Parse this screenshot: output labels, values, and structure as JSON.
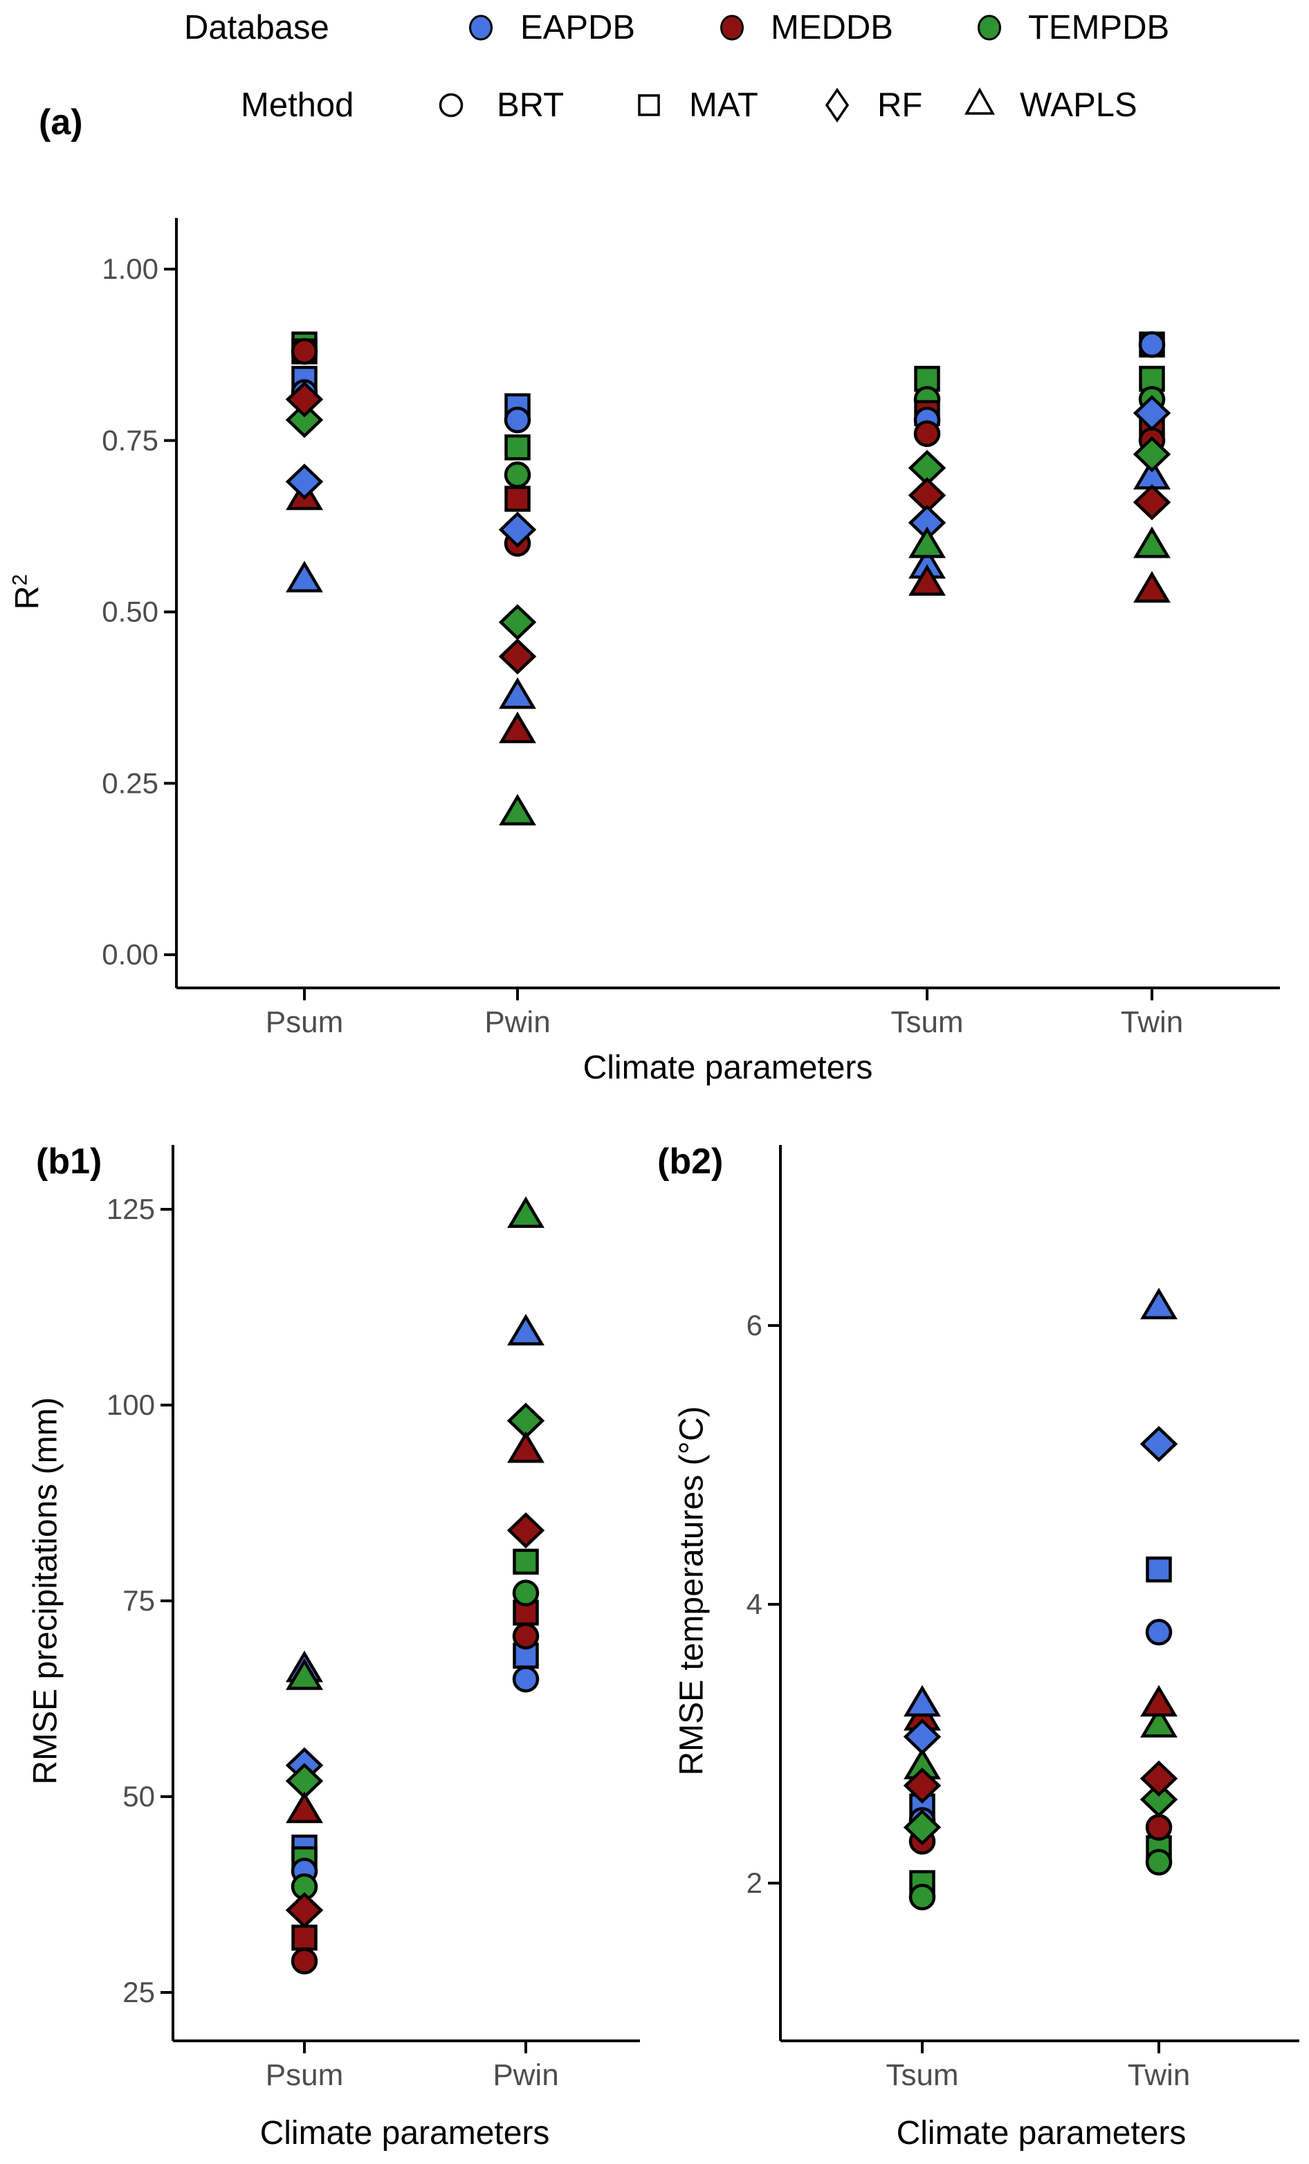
{
  "legend": {
    "database": {
      "label": "Database",
      "items": [
        {
          "name": "EAPDB",
          "color": "#4673e0"
        },
        {
          "name": "MEDDB",
          "color": "#8e1111"
        },
        {
          "name": "TEMPDB",
          "color": "#2e9330"
        }
      ]
    },
    "method": {
      "label": "Method",
      "items": [
        {
          "name": "BRT",
          "shape": "circle"
        },
        {
          "name": "MAT",
          "shape": "square"
        },
        {
          "name": "RF",
          "shape": "diamond"
        },
        {
          "name": "WAPLS",
          "shape": "triangle"
        }
      ]
    }
  },
  "panels": {
    "a": {
      "tag": "(a)",
      "xlabel": "Climate parameters",
      "ylabel_base": "R",
      "ylabel_sup": "2"
    },
    "b1": {
      "tag": "(b1)",
      "xlabel": "Climate parameters",
      "ylabel": "RMSE precipitations (mm)"
    },
    "b2": {
      "tag": "(b2)",
      "xlabel": "Climate parameters",
      "ylabel": "RMSE temperatures (°C)"
    }
  },
  "chart_data": [
    {
      "id": "a",
      "type": "scatter",
      "title": "(a) Cross-validated model performance",
      "xlabel": "Climate parameters",
      "ylabel": "R2",
      "categories": [
        "Psum",
        "Pwin",
        "Tsum",
        "Twin"
      ],
      "yticks": [
        {
          "value": 1.0,
          "label": "1.00"
        },
        {
          "value": 0.75,
          "label": "0.75"
        },
        {
          "value": 0.5,
          "label": "0.50"
        },
        {
          "value": 0.25,
          "label": "0.25"
        },
        {
          "value": 0.0,
          "label": "0.00"
        }
      ],
      "ylim": [
        0,
        1.05
      ],
      "grid": false,
      "legend_position": "top",
      "points": [
        {
          "x": "Psum",
          "database": "TEMPDB",
          "method": "MAT",
          "value": 0.89
        },
        {
          "x": "Psum",
          "database": "MEDDB",
          "method": "MAT",
          "value": 0.88
        },
        {
          "x": "Psum",
          "database": "EAPDB",
          "method": "MAT",
          "value": 0.84
        },
        {
          "x": "Psum",
          "database": "EAPDB",
          "method": "BRT",
          "value": 0.82
        },
        {
          "x": "Psum",
          "database": "TEMPDB",
          "method": "RF",
          "value": 0.78
        },
        {
          "x": "Psum",
          "database": "MEDDB",
          "method": "WAPLS",
          "value": 0.67
        },
        {
          "x": "Psum",
          "database": "MEDDB",
          "method": "RF",
          "value": 0.81
        },
        {
          "x": "Psum",
          "database": "MEDDB",
          "method": "BRT",
          "value": 0.88
        },
        {
          "x": "Psum",
          "database": "EAPDB",
          "method": "RF",
          "value": 0.69
        },
        {
          "x": "Psum",
          "database": "EAPDB",
          "method": "WAPLS",
          "value": 0.55
        },
        {
          "x": "Pwin",
          "database": "EAPDB",
          "method": "MAT",
          "value": 0.8
        },
        {
          "x": "Pwin",
          "database": "EAPDB",
          "method": "BRT",
          "value": 0.78
        },
        {
          "x": "Pwin",
          "database": "TEMPDB",
          "method": "MAT",
          "value": 0.74
        },
        {
          "x": "Pwin",
          "database": "MEDDB",
          "method": "MAT",
          "value": 0.665
        },
        {
          "x": "Pwin",
          "database": "TEMPDB",
          "method": "BRT",
          "value": 0.7
        },
        {
          "x": "Pwin",
          "database": "MEDDB",
          "method": "BRT",
          "value": 0.6
        },
        {
          "x": "Pwin",
          "database": "EAPDB",
          "method": "RF",
          "value": 0.62
        },
        {
          "x": "Pwin",
          "database": "MEDDB",
          "method": "RF",
          "value": 0.435
        },
        {
          "x": "Pwin",
          "database": "TEMPDB",
          "method": "RF",
          "value": 0.485
        },
        {
          "x": "Pwin",
          "database": "EAPDB",
          "method": "WAPLS",
          "value": 0.38
        },
        {
          "x": "Pwin",
          "database": "MEDDB",
          "method": "WAPLS",
          "value": 0.33
        },
        {
          "x": "Pwin",
          "database": "TEMPDB",
          "method": "WAPLS",
          "value": 0.21
        },
        {
          "x": "Tsum",
          "database": "TEMPDB",
          "method": "MAT",
          "value": 0.84
        },
        {
          "x": "Tsum",
          "database": "TEMPDB",
          "method": "BRT",
          "value": 0.81
        },
        {
          "x": "Tsum",
          "database": "MEDDB",
          "method": "MAT",
          "value": 0.79
        },
        {
          "x": "Tsum",
          "database": "EAPDB",
          "method": "BRT",
          "value": 0.78
        },
        {
          "x": "Tsum",
          "database": "MEDDB",
          "method": "BRT",
          "value": 0.76
        },
        {
          "x": "Tsum",
          "database": "TEMPDB",
          "method": "RF",
          "value": 0.71
        },
        {
          "x": "Tsum",
          "database": "MEDDB",
          "method": "RF",
          "value": 0.67
        },
        {
          "x": "Tsum",
          "database": "EAPDB",
          "method": "RF",
          "value": 0.63
        },
        {
          "x": "Tsum",
          "database": "EAPDB",
          "method": "WAPLS",
          "value": 0.57
        },
        {
          "x": "Tsum",
          "database": "TEMPDB",
          "method": "WAPLS",
          "value": 0.6
        },
        {
          "x": "Tsum",
          "database": "MEDDB",
          "method": "WAPLS",
          "value": 0.545
        },
        {
          "x": "Twin",
          "database": "EAPDB",
          "method": "MAT",
          "value": 0.89
        },
        {
          "x": "Twin",
          "database": "EAPDB",
          "method": "BRT",
          "value": 0.89
        },
        {
          "x": "Twin",
          "database": "TEMPDB",
          "method": "MAT",
          "value": 0.84
        },
        {
          "x": "Twin",
          "database": "TEMPDB",
          "method": "BRT",
          "value": 0.81
        },
        {
          "x": "Twin",
          "database": "MEDDB",
          "method": "MAT",
          "value": 0.765
        },
        {
          "x": "Twin",
          "database": "MEDDB",
          "method": "BRT",
          "value": 0.75
        },
        {
          "x": "Twin",
          "database": "EAPDB",
          "method": "RF",
          "value": 0.79
        },
        {
          "x": "Twin",
          "database": "EAPDB",
          "method": "WAPLS",
          "value": 0.7
        },
        {
          "x": "Twin",
          "database": "TEMPDB",
          "method": "RF",
          "value": 0.73
        },
        {
          "x": "Twin",
          "database": "MEDDB",
          "method": "RF",
          "value": 0.66
        },
        {
          "x": "Twin",
          "database": "TEMPDB",
          "method": "WAPLS",
          "value": 0.6
        },
        {
          "x": "Twin",
          "database": "MEDDB",
          "method": "WAPLS",
          "value": 0.535
        }
      ]
    },
    {
      "id": "b1",
      "type": "scatter",
      "title": "(b1) RMSE of precipitation reconstructions",
      "xlabel": "Climate parameters",
      "ylabel": "RMSE precipitations (mm)",
      "categories": [
        "Psum",
        "Pwin"
      ],
      "yticks": [
        {
          "value": 125,
          "label": "125"
        },
        {
          "value": 100,
          "label": "100"
        },
        {
          "value": 75,
          "label": "75"
        },
        {
          "value": 50,
          "label": "50"
        },
        {
          "value": 25,
          "label": "25"
        }
      ],
      "ylim": [
        20,
        131
      ],
      "grid": false,
      "points": [
        {
          "x": "Psum",
          "database": "EAPDB",
          "method": "WAPLS",
          "value": 66.5
        },
        {
          "x": "Psum",
          "database": "TEMPDB",
          "method": "WAPLS",
          "value": 65.5
        },
        {
          "x": "Psum",
          "database": "EAPDB",
          "method": "RF",
          "value": 54
        },
        {
          "x": "Psum",
          "database": "TEMPDB",
          "method": "RF",
          "value": 52
        },
        {
          "x": "Psum",
          "database": "MEDDB",
          "method": "WAPLS",
          "value": 48.5
        },
        {
          "x": "Psum",
          "database": "EAPDB",
          "method": "MAT",
          "value": 43.5
        },
        {
          "x": "Psum",
          "database": "TEMPDB",
          "method": "MAT",
          "value": 42
        },
        {
          "x": "Psum",
          "database": "EAPDB",
          "method": "BRT",
          "value": 40.5
        },
        {
          "x": "Psum",
          "database": "TEMPDB",
          "method": "BRT",
          "value": 38.5
        },
        {
          "x": "Psum",
          "database": "MEDDB",
          "method": "RF",
          "value": 35.5
        },
        {
          "x": "Psum",
          "database": "MEDDB",
          "method": "MAT",
          "value": 32
        },
        {
          "x": "Psum",
          "database": "MEDDB",
          "method": "BRT",
          "value": 29
        },
        {
          "x": "Pwin",
          "database": "TEMPDB",
          "method": "WAPLS",
          "value": 124.5
        },
        {
          "x": "Pwin",
          "database": "EAPDB",
          "method": "WAPLS",
          "value": 109.5
        },
        {
          "x": "Pwin",
          "database": "TEMPDB",
          "method": "RF",
          "value": 98
        },
        {
          "x": "Pwin",
          "database": "MEDDB",
          "method": "WAPLS",
          "value": 94.5
        },
        {
          "x": "Pwin",
          "database": "MEDDB",
          "method": "RF",
          "value": 84
        },
        {
          "x": "Pwin",
          "database": "TEMPDB",
          "method": "MAT",
          "value": 80
        },
        {
          "x": "Pwin",
          "database": "MEDDB",
          "method": "MAT",
          "value": 73.5
        },
        {
          "x": "Pwin",
          "database": "TEMPDB",
          "method": "BRT",
          "value": 76
        },
        {
          "x": "Pwin",
          "database": "EAPDB",
          "method": "MAT",
          "value": 68
        },
        {
          "x": "Pwin",
          "database": "MEDDB",
          "method": "BRT",
          "value": 70.5
        },
        {
          "x": "Pwin",
          "database": "EAPDB",
          "method": "BRT",
          "value": 65
        }
      ]
    },
    {
      "id": "b2",
      "type": "scatter",
      "title": "(b2) RMSE of temperature reconstructions",
      "xlabel": "Climate parameters",
      "ylabel": "RMSE temperatures (°C)",
      "categories": [
        "Tsum",
        "Twin"
      ],
      "yticks": [
        {
          "value": 6,
          "label": "6"
        },
        {
          "value": 4,
          "label": "4"
        },
        {
          "value": 2,
          "label": "2"
        }
      ],
      "ylim": [
        1.3,
        6.8
      ],
      "grid": false,
      "points": [
        {
          "x": "Tsum",
          "database": "MEDDB",
          "method": "WAPLS",
          "value": 3.2
        },
        {
          "x": "Tsum",
          "database": "EAPDB",
          "method": "WAPLS",
          "value": 3.3
        },
        {
          "x": "Tsum",
          "database": "TEMPDB",
          "method": "WAPLS",
          "value": 2.85
        },
        {
          "x": "Tsum",
          "database": "EAPDB",
          "method": "RF",
          "value": 3.05
        },
        {
          "x": "Tsum",
          "database": "EAPDB",
          "method": "MAT",
          "value": 2.55
        },
        {
          "x": "Tsum",
          "database": "MEDDB",
          "method": "RF",
          "value": 2.7
        },
        {
          "x": "Tsum",
          "database": "EAPDB",
          "method": "BRT",
          "value": 2.45
        },
        {
          "x": "Tsum",
          "database": "MEDDB",
          "method": "BRT",
          "value": 2.3
        },
        {
          "x": "Tsum",
          "database": "TEMPDB",
          "method": "RF",
          "value": 2.4
        },
        {
          "x": "Tsum",
          "database": "TEMPDB",
          "method": "MAT",
          "value": 2.0
        },
        {
          "x": "Tsum",
          "database": "TEMPDB",
          "method": "BRT",
          "value": 1.9
        },
        {
          "x": "Twin",
          "database": "TEMPDB",
          "method": "MAT",
          "value": 2.25
        },
        {
          "x": "Twin",
          "database": "MEDDB",
          "method": "BRT",
          "value": 2.4
        },
        {
          "x": "Twin",
          "database": "TEMPDB",
          "method": "BRT",
          "value": 2.15
        },
        {
          "x": "Twin",
          "database": "TEMPDB",
          "method": "RF",
          "value": 2.6
        },
        {
          "x": "Twin",
          "database": "MEDDB",
          "method": "RF",
          "value": 2.75
        },
        {
          "x": "Twin",
          "database": "TEMPDB",
          "method": "WAPLS",
          "value": 3.15
        },
        {
          "x": "Twin",
          "database": "MEDDB",
          "method": "WAPLS",
          "value": 3.3
        },
        {
          "x": "Twin",
          "database": "EAPDB",
          "method": "BRT",
          "value": 3.8
        },
        {
          "x": "Twin",
          "database": "EAPDB",
          "method": "MAT",
          "value": 4.25
        },
        {
          "x": "Twin",
          "database": "EAPDB",
          "method": "RF",
          "value": 5.15
        },
        {
          "x": "Twin",
          "database": "EAPDB",
          "method": "WAPLS",
          "value": 6.15
        }
      ]
    }
  ]
}
